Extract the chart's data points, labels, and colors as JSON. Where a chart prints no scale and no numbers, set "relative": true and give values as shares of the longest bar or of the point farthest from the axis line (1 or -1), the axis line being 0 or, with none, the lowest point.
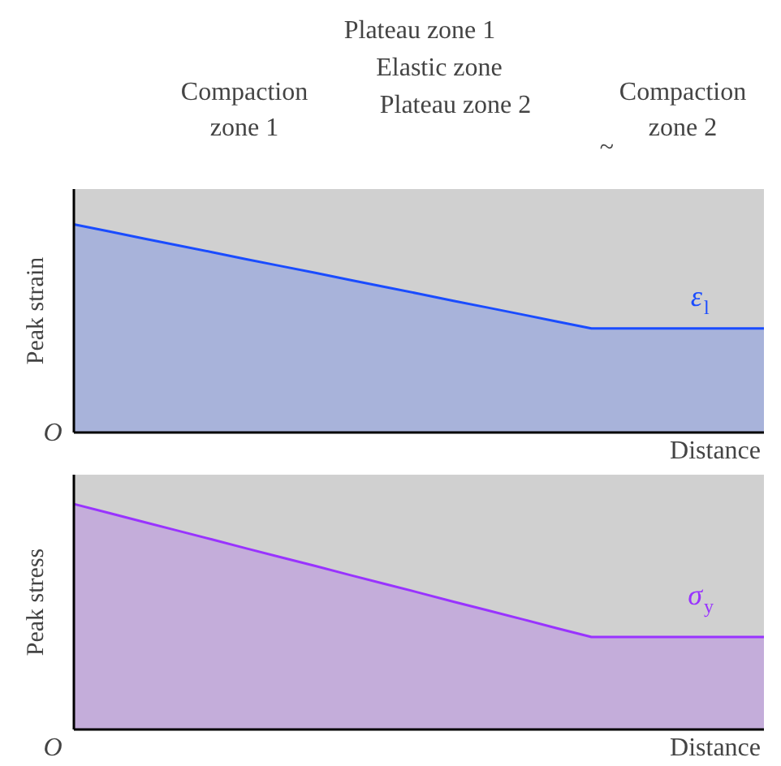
{
  "chart_data": [
    {
      "type": "area",
      "relative": true,
      "ylabel": "Peak strain",
      "xlabel": "Distance",
      "categories": [
        null,
        null,
        null,
        null,
        null,
        null,
        null,
        null,
        null,
        null,
        null,
        null,
        null,
        null,
        null,
        null,
        null,
        null,
        null,
        null,
        null
      ],
      "series": [
        {
          "name": "ε$_{l}$",
          "color": "#1a4cff",
          "values": [
            1,
            0.967,
            0.933,
            0.9,
            0.867,
            0.833,
            0.8,
            0.767,
            0.733,
            0.7,
            0.667,
            0.633,
            0.6,
            0.567,
            0.533,
            0.5,
            0.5,
            0.5,
            0.5,
            0.5,
            0.5
          ]
        }
      ],
      "annotations": [
        "Compaction\nzone 1",
        "Plateau zone 1",
        "Elastic zone",
        "Plateau zone 2",
        "Compaction\nzone 2",
        "O",
        "~"
      ]
    },
    {
      "type": "area",
      "relative": true,
      "ylabel": "Peak stress",
      "xlabel": "Distance",
      "categories": [
        null,
        null,
        null,
        null,
        null,
        null,
        null,
        null,
        null,
        null,
        null,
        null,
        null,
        null,
        null,
        null,
        null,
        null,
        null,
        null,
        null
      ],
      "series": [
        {
          "name": "σ$_{y}$",
          "color": "#9933ff",
          "values": [
            1,
            0.961,
            0.921,
            0.882,
            0.843,
            0.803,
            0.764,
            0.725,
            0.685,
            0.646,
            0.607,
            0.567,
            0.528,
            0.489,
            0.449,
            0.41,
            0.41,
            0.41,
            0.41,
            0.41,
            0.41
          ]
        }
      ],
      "annotations": [
        "O"
      ]
    }
  ]
}
